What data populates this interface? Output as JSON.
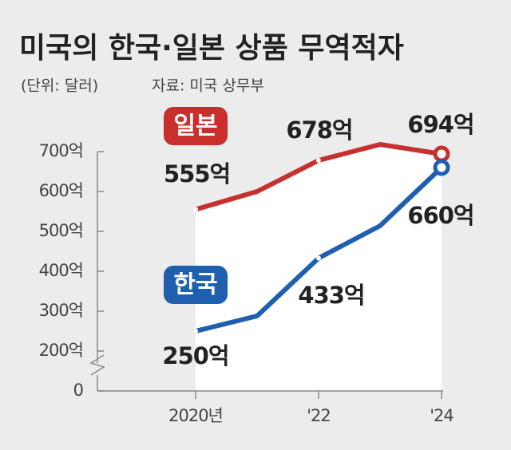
{
  "chart_data": {
    "type": "line",
    "title": "미국의 한국·일본 상품 무역적자",
    "subtitle": "(단위: 달러)",
    "source": "자료: 미국 상무부",
    "categories": [
      "2020년",
      null,
      "'22",
      null,
      "'24"
    ],
    "series": [
      {
        "name": "일본",
        "color": "#c8302e",
        "values": [
          555,
          600,
          678,
          718,
          694
        ],
        "value_labels": [
          "555억",
          null,
          "678억",
          null,
          "694억"
        ]
      },
      {
        "name": "한국",
        "color": "#1f5fb0",
        "values": [
          250,
          288,
          433,
          514,
          660
        ],
        "value_labels": [
          "250억",
          null,
          "433억",
          null,
          "660억"
        ]
      }
    ],
    "ylim": [
      0,
      700
    ],
    "yticks": [
      0,
      {
        "value": 200,
        "label": "200억"
      },
      {
        "value": 300,
        "label": "300억"
      },
      {
        "value": 400,
        "label": "400억"
      },
      {
        "value": 500,
        "label": "500억"
      },
      {
        "value": 600,
        "label": "600억"
      },
      {
        "value": 700,
        "label": "700억"
      }
    ],
    "axis_break": true
  }
}
